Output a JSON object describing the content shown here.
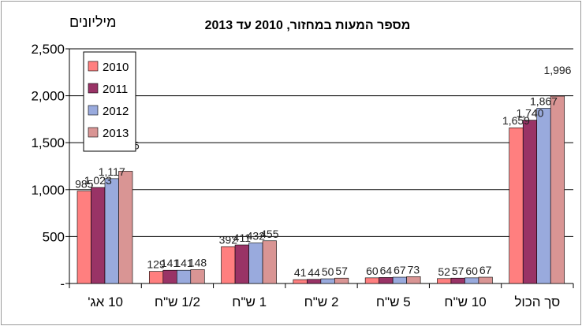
{
  "chart_data": {
    "type": "bar",
    "title": "מספר המעות במחזור, 2010 עד 2013",
    "ylabel": "מיליונים",
    "xlabel": "",
    "ylim": [
      0,
      2500
    ],
    "yticks": [
      0,
      500,
      1000,
      1500,
      2000,
      2500
    ],
    "ytick_labels": [
      "-",
      "500",
      "1,000",
      "1,500",
      "2,000",
      "2,500"
    ],
    "categories": [
      "10 אג'",
      "1/2 ש\"ח",
      "1 ש\"ח",
      "2 ש\"ח",
      "5 ש\"ח",
      "10 ש\"ח",
      "סך הכול"
    ],
    "series": [
      {
        "name": "2010",
        "color": "#ff7f7f",
        "values": [
          985,
          129,
          392,
          41,
          60,
          52,
          1659
        ],
        "labels": [
          "985",
          "129",
          "392",
          "41",
          "60",
          "52",
          "1,659"
        ]
      },
      {
        "name": "2011",
        "color": "#993366",
        "values": [
          1023,
          141,
          411,
          44,
          64,
          57,
          1740
        ],
        "labels": [
          "1,023",
          "141",
          "411",
          "44",
          "64",
          "57",
          "1,740"
        ]
      },
      {
        "name": "2012",
        "color": "#99aadd",
        "values": [
          1117,
          141,
          432,
          50,
          67,
          60,
          1867
        ],
        "labels": [
          "1,117",
          "141",
          "432",
          "50",
          "67",
          "60",
          "1,867"
        ]
      },
      {
        "name": "2013",
        "color": "#d99594",
        "values": [
          1196,
          148,
          455,
          57,
          73,
          67,
          1996
        ],
        "labels": [
          "1,196",
          "148",
          "455",
          "57",
          "73",
          "67",
          "1,996"
        ]
      }
    ],
    "grid": true,
    "legend_position": "top-left"
  }
}
